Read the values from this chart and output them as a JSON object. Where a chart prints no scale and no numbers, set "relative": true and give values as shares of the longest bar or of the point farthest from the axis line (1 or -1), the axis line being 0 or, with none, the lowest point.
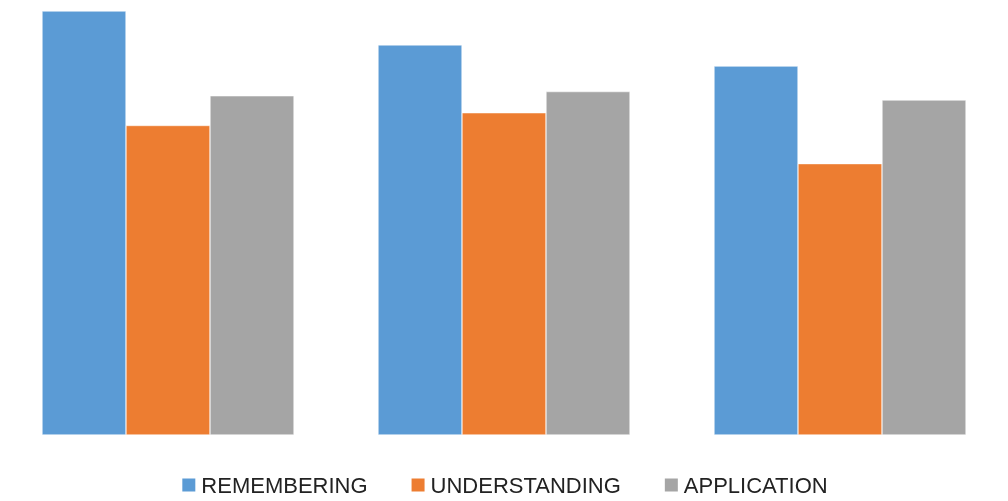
{
  "chart_data": {
    "type": "bar",
    "relative": true,
    "categories": [
      null,
      null,
      null
    ],
    "series": [
      {
        "name": "REMEMBERING",
        "color": "#5b9bd5",
        "values": [
          1,
          0.92,
          0.87
        ]
      },
      {
        "name": "UNDERSTANDING",
        "color": "#ed7d31",
        "values": [
          0.73,
          0.76,
          0.64
        ]
      },
      {
        "name": "APPLICATION",
        "color": "#a5a5a5",
        "values": [
          0.8,
          0.81,
          0.79
        ]
      }
    ],
    "legend": "bottom"
  }
}
